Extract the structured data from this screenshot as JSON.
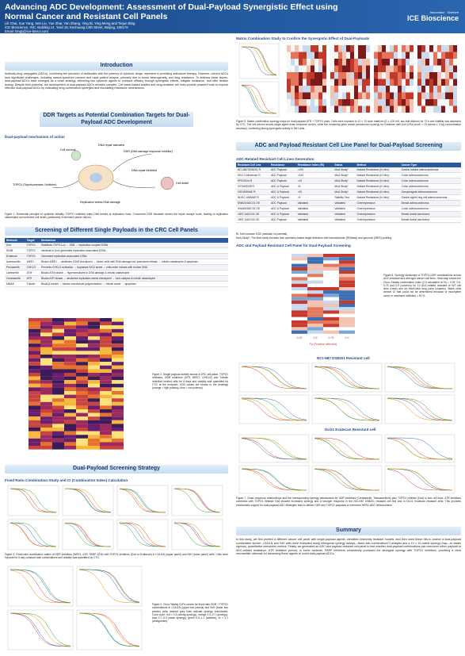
{
  "header": {
    "title": "Advancing ADC Development: Assessment of Dual-Payload Synergistic Effect using Normal Cancer and Resistant Cell Panels",
    "authors": "Lili Chai, Xue Yang, Wei Liu, Yue Zhai, Yan Zhang, Ying Bi, Ying Meng and Tiejun Bing",
    "affiliation": "ICE Bioscience, INC. Building 14, Yard 18, Kechuang 13th Street, Beijing, 100176",
    "email": "Email: bingtj@ice-biosci.com",
    "logo": "ICE Bioscience"
  },
  "introduction": {
    "heading": "Introduction",
    "text": "Antibody-drug conjugates (ADCs), combining the precision of antibodies with the potency of cytotoxic drugs, represent a promising anticancer therapy. However, current ADCs face significant challenges, including narrow-spectrum cancers and rapid patient relapse, primarily due to tumor heterogeneity and drug resistance. To address these issues, dual-payload ADCs have emerged as a novel strategy, delivering two cytotoxic agents to enhance efficacy through synergistic effects, mitigate resistance, and offer flexible dosing. Despite their potential, the development of dual-payload ADCs remains complex. Cell panel-based studies and drug-resistant cell lines provide powerful tools to explore effective dual-payload ADCs by evaluating drug combination synergies and elucidating resistance mechanisms."
  },
  "ddr": {
    "heading": "DDR Targets as Potential Combination Targets for Dual-Payload ADC Development",
    "subheading": "Dual-payload mechanism of action",
    "labels": [
      "DNA repair activated",
      "DDR (DNA damage response inhibitor)",
      "Cell survival",
      "DNA repair inhibited",
      "Cell death",
      "TOPO1 (Topoisomerase I inhibitor)",
      "Replication stress DNA damage"
    ],
    "caption": "Figure 1. Schematic principle of synthetic lethality. TOPO1 inhibition traps DNA breaks at replication forks. Concurrent DDR blockade severs the repair escape route, leading to replication catastrophe and selective cell death, particularly in stressed cancer tumors."
  },
  "screening": {
    "heading": "Screening of Different Single Payloads in the CRC Cell Panels",
    "table": {
      "columns": [
        "Molecule",
        "Target",
        "Mechanism"
      ],
      "rows": [
        [
          "Dxd",
          "TOPO1",
          "Stabilizes TOPO1-cc → SSB → replication-coupled DSBs"
        ],
        [
          "SN38",
          "TOPO1",
          "Identical to Dxd; generates replication-associated DSBs"
        ],
        [
          "Exatecan",
          "TOPO1",
          "Generates replication-associated DSBs"
        ],
        [
          "Azenosertib",
          "WEE1",
          "Blocks WEE1 → abolishes G2/M checkpoint → forces cells with DNA damage into premature mitosis → mitotic catastrophe & apoptosis"
        ],
        [
          "Prexasertib",
          "CHK1/2",
          "Prevents CHK1/2 activation → bypasses S/G2 arrest → cells enter mitosis with broken DNA"
        ],
        [
          "Lartesertib",
          "ATM",
          "Blocks ATM kinase → hypersensitizes to DSB damage & mitotic catastrophe"
        ],
        [
          "Ceralasertib",
          "ATR",
          "Blocks ATR kinase → abolishes replication-stress checkpoint → fork collapse & mitotic catastrophe"
        ],
        [
          "MMAE",
          "Tubulin",
          "Binds β-tubulin → blocks microtubule polymerization → mitotic arrest → apoptosis"
        ]
      ]
    },
    "caption": "Figure 2. Single payload activity across a CRC cell panel. TOPO1 inhibitors, DDR inhibitors (ATR, WEE1, CHK1/2) and Tubulin inhibitors treated cells for 5 days and viability was quantified by CTG at the endpoint; IC50 values are shown in the heatmap (orange = high potency, blue = low potency)."
  },
  "strategy": {
    "heading": "Dual-Payload Screening Strategy",
    "subheading": "Fixed Ratio Combination Study and CI (Combination Index) Calculation",
    "caption3": "Figure 3. Fixed-ratio combination matrix of DDR inhibitors (WEE1, ATR, PARP, ATM) with TOPO1 inhibitors (Dxd or Exatecan) in LS411N (upper panel) and 94H (lower panel) cells. Cells were exposed to 9-day constant-ratio combinations and viability was quantified by CTG.",
    "caption4": "Figure 4. Chou-Talalay CI/Fa curves for fixed-ratio DDR + TOPO1 combinations in LS411N (upper two panels) and 94H (lower two panels) cells; dashed grey lines indicate synergy boundaries. Color code: red < 0.3 (strong synergy), orange 0.3–0.7 (synergy), blue 0.7–0.9 (weak synergy), green 0.9–1.1 (additive), or > 1.1 (antagonism)."
  },
  "matrix": {
    "subheading": "Matrix Combination Study to Confirm the Synergistic Effect of Dual-Payloads",
    "caption": "Figure 5. Matrix-combination synergy maps for dual-payload ATR + TOPO1 pairs. Cells were exposed to 10 × 10 dose matrices (0.1–100 nM, two-fold dilution) for 72 h and viability was assessed by CTG. The left column shows single-agent dose–response curves, while the remaining grids reveal pronounced synergy for Exatecan with Dxd (HSA score > 13 across ≥ 3 log concentration windows), confirming strong synergistic activity in 94H cells."
  },
  "resistant": {
    "heading": "ADC and Payload Resistant Cell Line Panel for Dual-Payload Screening",
    "subheading": "ADC-Related Resistant Cell Lines Generation",
    "table": {
      "columns": [
        "Resistant Cell Line",
        "Resistance",
        "Resistance Index (RI)",
        "Status",
        "Method",
        "Cancer Type"
      ],
      "rows": [
        [
          "NCI-N87/DS8201 R",
          "ADC Payload",
          ">100",
          "MoA Study*",
          "Natural Resistance (In vitro)",
          "Gastric tubular adenocarcinoma"
        ],
        [
          "SKO-1/Irinotecan R",
          "ADC Payload",
          ">100",
          "MoA Study*",
          "Natural Resistance (In vitro)",
          "Colon adenocarcinoma"
        ],
        [
          "SP02/Dxd R",
          "ADC Payload",
          ">10",
          "MoA Study*",
          "Natural Resistance (In vitro)",
          "Colon adenocarcinoma"
        ],
        [
          "GP2d/SN38 R",
          "ADC & Payload",
          ">5",
          "MoA Study*",
          "Natural Resistance (In vitro)",
          "Colon adenocarcinoma"
        ],
        [
          "OE19/MMAE R",
          "ADC & Payload",
          ">20",
          "MoA Study*",
          "Natural Resistance (In vitro)",
          "Oesophageal adenocarcinoma"
        ],
        [
          "NUGC-4/MMAE R",
          "ADC & Payload",
          ">5",
          "Stability Test",
          "Natural Resistance (In vitro)",
          "Gastric signet ring cell adenocarcinoma"
        ],
        [
          "SW620/ADC01 OE",
          "ADC Payload",
          "Validated",
          "Validated",
          "Overexpression",
          "Breast adenocarcinoma"
        ],
        [
          "SW480/ADC02 OE",
          "ADC & Payload",
          "Validated",
          "Validated",
          "Overexpression",
          "Colon adenocarcinoma"
        ],
        [
          "JIMT-1/ADC01 OE",
          "ADC & Payload",
          "Validated",
          "Validated",
          "Overexpression",
          "Breast ductal carcinoma"
        ],
        [
          "JIMT-1/ADC02 OE",
          "ADC Payload",
          "Validated",
          "Validated",
          "Overexpression",
          "Breast ductal carcinoma"
        ]
      ]
    },
    "notes": [
      "RI: fold increase IC50 (resistant vs parental)",
      "MoA Study*: The MoA study includes flow cytometry-based target detection with transcriptomic (RNAseq) and genomic (WES) profiling."
    ],
    "panel_heading": "ADC and Payload Resistant Cell Panel for Dual-Payload Screening",
    "fa_ticks": [
      "0.25",
      "0.5",
      "0.75",
      "0.9"
    ],
    "fa_label": "Fa (Fraction affected)",
    "caption6": "Figure 6. Synergy landscape of TOPO1-DDR combinations across ADC-resistant and wild-type cancer cell lines. Heat-map shows the Chou–Talalay combination index (CI) calculated at Fa = 0.25, 0.5, 0.75 and 0.9 (columns) for 10 ADC-related resistant or WT cell lines (rows) and six fixed-ratio drug pairs (clusters). Blank cells denote CI that could not be determined because of incomplete curve or maximum inhibition < 50 %.",
    "cell1": "NCI-N87 DS8201 Resistant cell",
    "cell2": "DLD1 Exatecan Resistant cell",
    "caption7": "Figure 7. Dose–response relationships and the corresponding synergy assessment for DDR inhibitors (Ceralasertib, Tabmaseritinib) plus TOPO1 inhibitor (Dxd) in two cell lines. ATR inhibitors combined with TOPO1 inhibitor Dxd showed increased synergy and a stronger response in the NCI-N87 DS8201 resistant cell line and in DLD1 Exatecan resistant cells. This provides mechanistic support for dual-payload ADC strategies that co-deliver DDR and TOPO1 payloads to overcome HER2-ADC refractoriness."
  },
  "summary": {
    "heading": "Summary",
    "text": "In this study, we first profiled a different cancer cell panel with single-payload agents, identified inherently resistant models, and then used these hits to anchor a dual-payload combination screen. LS411N and 94H cells were evaluated using orthogonal synergy assays—fixed-ratio combination/CI analysis and a 10 × 10 matrix synergy map—to obtain rigorous, quantitative interaction metrics. Finally, we generated an ADC and payload-resistant cell panel to test whether dual-payload combinations can overcome either payload or ADC-related resistance. ATR inhibition proved, in some contexts, PARP inhibitors consistently produced the strongest synergy with TOPO1 inhibitors, providing a clear mechanistic rationale for advancing these agents to novel dual-payload ADCs."
  }
}
